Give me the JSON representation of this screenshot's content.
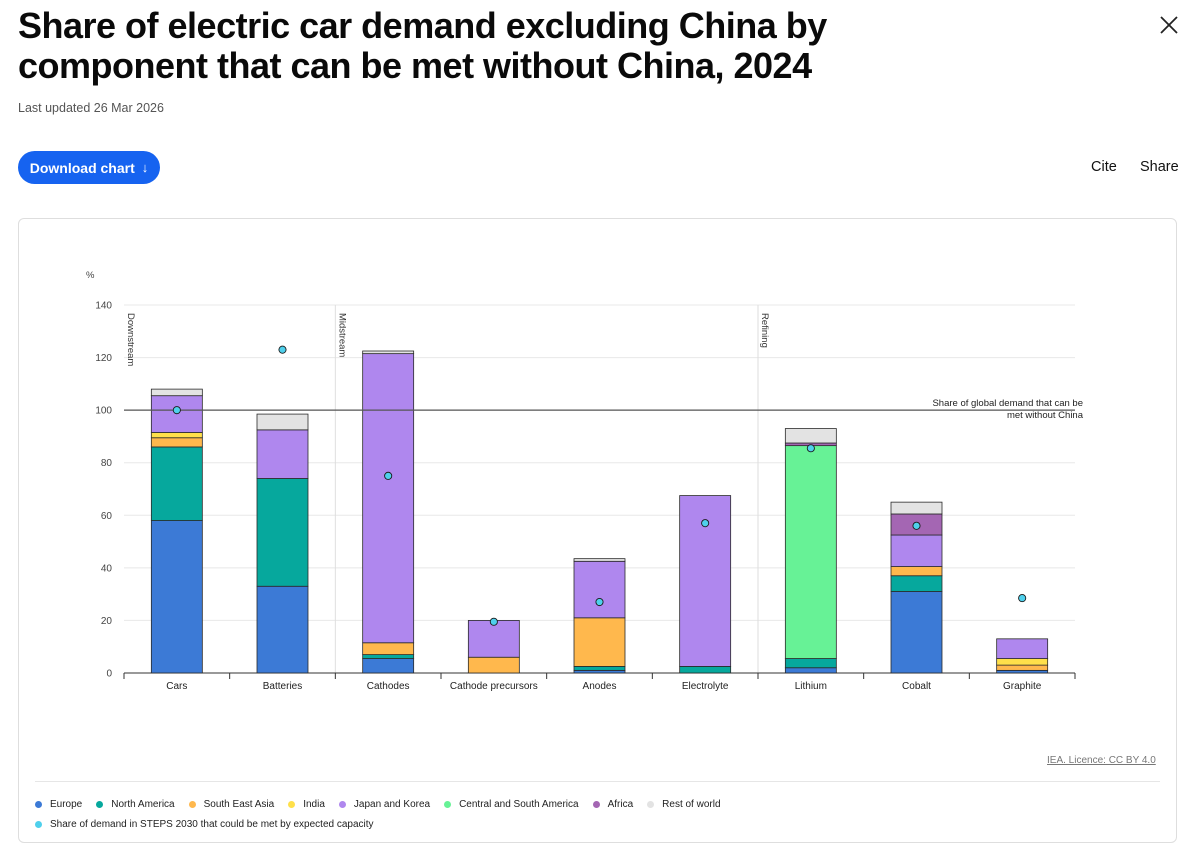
{
  "header": {
    "title": "Share of electric car demand excluding China by component that can be met without China, 2024",
    "updated": "Last updated 26 Mar 2026",
    "download_label": "Download chart",
    "download_icon": "↓",
    "cite_label": "Cite",
    "share_label": "Share"
  },
  "footer": {
    "license": "IEA. Licence: CC BY 4.0"
  },
  "colors": {
    "Europe": "#3c7ad6",
    "North America": "#06a89d",
    "South East Asia": "#ffb84d",
    "India": "#ffe04a",
    "Japan and Korea": "#af87ee",
    "Central and South America": "#67f296",
    "Africa": "#a466b3",
    "Rest of world": "#e3e3e3",
    "Share of demand in STEPS 2030 that could be met by expected capacity": "#4fd0ec"
  },
  "chart_data": {
    "type": "bar",
    "stacked": true,
    "title": "Share of electric car demand excluding China by component that can be met without China, 2024",
    "ylabel": "%",
    "ylim": [
      0,
      140
    ],
    "yticks": [
      "0",
      "20",
      "40",
      "60",
      "80",
      "100",
      "120",
      "140"
    ],
    "categories": [
      "Cars",
      "Batteries",
      "Cathodes",
      "Cathode precursors",
      "Anodes",
      "Electrolyte",
      "Lithium",
      "Cobalt",
      "Graphite"
    ],
    "series": [
      {
        "name": "Europe",
        "values": [
          58,
          33,
          5.5,
          0,
          1,
          0,
          2,
          31,
          1
        ]
      },
      {
        "name": "North America",
        "values": [
          28,
          41,
          1.5,
          0,
          1.5,
          2.5,
          3.5,
          6,
          0
        ]
      },
      {
        "name": "South East Asia",
        "values": [
          3.5,
          0,
          4.5,
          6,
          18.5,
          0,
          0,
          3.5,
          2
        ]
      },
      {
        "name": "India",
        "values": [
          2,
          0,
          0,
          0,
          0,
          0,
          0,
          0,
          2.5
        ]
      },
      {
        "name": "Japan and Korea",
        "values": [
          14,
          18.5,
          110,
          14,
          21.5,
          65,
          0,
          12,
          7.5
        ]
      },
      {
        "name": "Central and South America",
        "values": [
          0,
          0,
          0,
          0,
          0,
          0,
          81,
          0,
          0
        ]
      },
      {
        "name": "Africa",
        "values": [
          0,
          0,
          0,
          0,
          0,
          0,
          1,
          8,
          0
        ]
      },
      {
        "name": "Rest of world",
        "values": [
          2.5,
          6,
          1,
          0,
          1,
          0,
          5.5,
          4.5,
          0
        ]
      }
    ],
    "markers": {
      "name": "Share of demand in STEPS 2030 that could be met by expected capacity",
      "values": [
        100,
        123,
        75,
        19.5,
        27,
        57,
        85.5,
        56,
        28.5
      ]
    },
    "reference_line": {
      "value": 100,
      "label": "Share of global demand that can be met without China"
    },
    "sections": [
      {
        "label": "Downstream",
        "start_index": 0
      },
      {
        "label": "Midstream",
        "start_index": 2
      },
      {
        "label": "Refining",
        "start_index": 6
      }
    ],
    "legend": [
      "Europe",
      "North America",
      "South East Asia",
      "India",
      "Japan and Korea",
      "Central and South America",
      "Africa",
      "Rest of world",
      "Share of demand in STEPS 2030 that could be met by expected capacity"
    ]
  }
}
